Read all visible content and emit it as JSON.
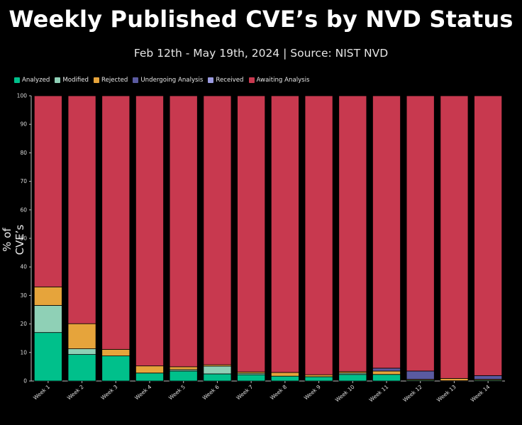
{
  "header": {
    "title": "Weekly Published CVE’s by NVD Status",
    "subtitle": "Feb 12th - May 19th, 2024 | Source: NIST NVD"
  },
  "colors": {
    "Analyzed": "#00c08b",
    "Modified": "#8fd0b6",
    "Rejected": "#e6a43b",
    "Undergoing Analysis": "#5a5aa0",
    "Received": "#9b9be0",
    "Awaiting Analysis": "#c8394f"
  },
  "chart_data": {
    "type": "bar",
    "stacked": true,
    "title": "Weekly Published CVE’s by NVD Status",
    "subtitle": "Feb 12th - May 19th, 2024 | Source: NIST NVD",
    "ylabel": "% of CVE’s",
    "xlabel": "",
    "ylim": [
      0,
      100
    ],
    "yticks": [
      0,
      10,
      20,
      30,
      40,
      50,
      60,
      70,
      80,
      90,
      100
    ],
    "legend_position": "top-left",
    "categories": [
      "Week 1",
      "Week 2",
      "Week 3",
      "Week 4",
      "Week 5",
      "Week 6",
      "Week 7",
      "Week 8",
      "Week 9",
      "Week 10",
      "Week 11",
      "Week 12",
      "Week 13",
      "Week 14"
    ],
    "series": [
      {
        "name": "Analyzed",
        "values": [
          17,
          9.3,
          8.8,
          2.8,
          3.5,
          2.5,
          2.2,
          1.7,
          1.5,
          2.3,
          2.3,
          0.3,
          0.1,
          0.3
        ]
      },
      {
        "name": "Modified",
        "values": [
          9.5,
          2,
          0,
          0,
          0.5,
          2.7,
          0.5,
          0,
          0,
          0.5,
          0,
          0,
          0,
          0
        ]
      },
      {
        "name": "Rejected",
        "values": [
          6.5,
          8.8,
          2.3,
          2.5,
          1,
          0.5,
          0.5,
          1.3,
          0.7,
          0.5,
          1.2,
          0.3,
          0.8,
          0.3
        ]
      },
      {
        "name": "Undergoing Analysis",
        "values": [
          0,
          0,
          0,
          0,
          0,
          0,
          0,
          0,
          0,
          0,
          1,
          2.9,
          0,
          1.3
        ]
      },
      {
        "name": "Received",
        "values": [
          0,
          0,
          0,
          0,
          0,
          0,
          0,
          0,
          0,
          0,
          0,
          0,
          0,
          0
        ]
      },
      {
        "name": "Awaiting Analysis",
        "values": [
          67,
          79.9,
          88.9,
          94.7,
          95,
          94.3,
          96.8,
          97,
          97.8,
          96.7,
          95.5,
          96.5,
          99.1,
          98.1
        ]
      }
    ]
  }
}
